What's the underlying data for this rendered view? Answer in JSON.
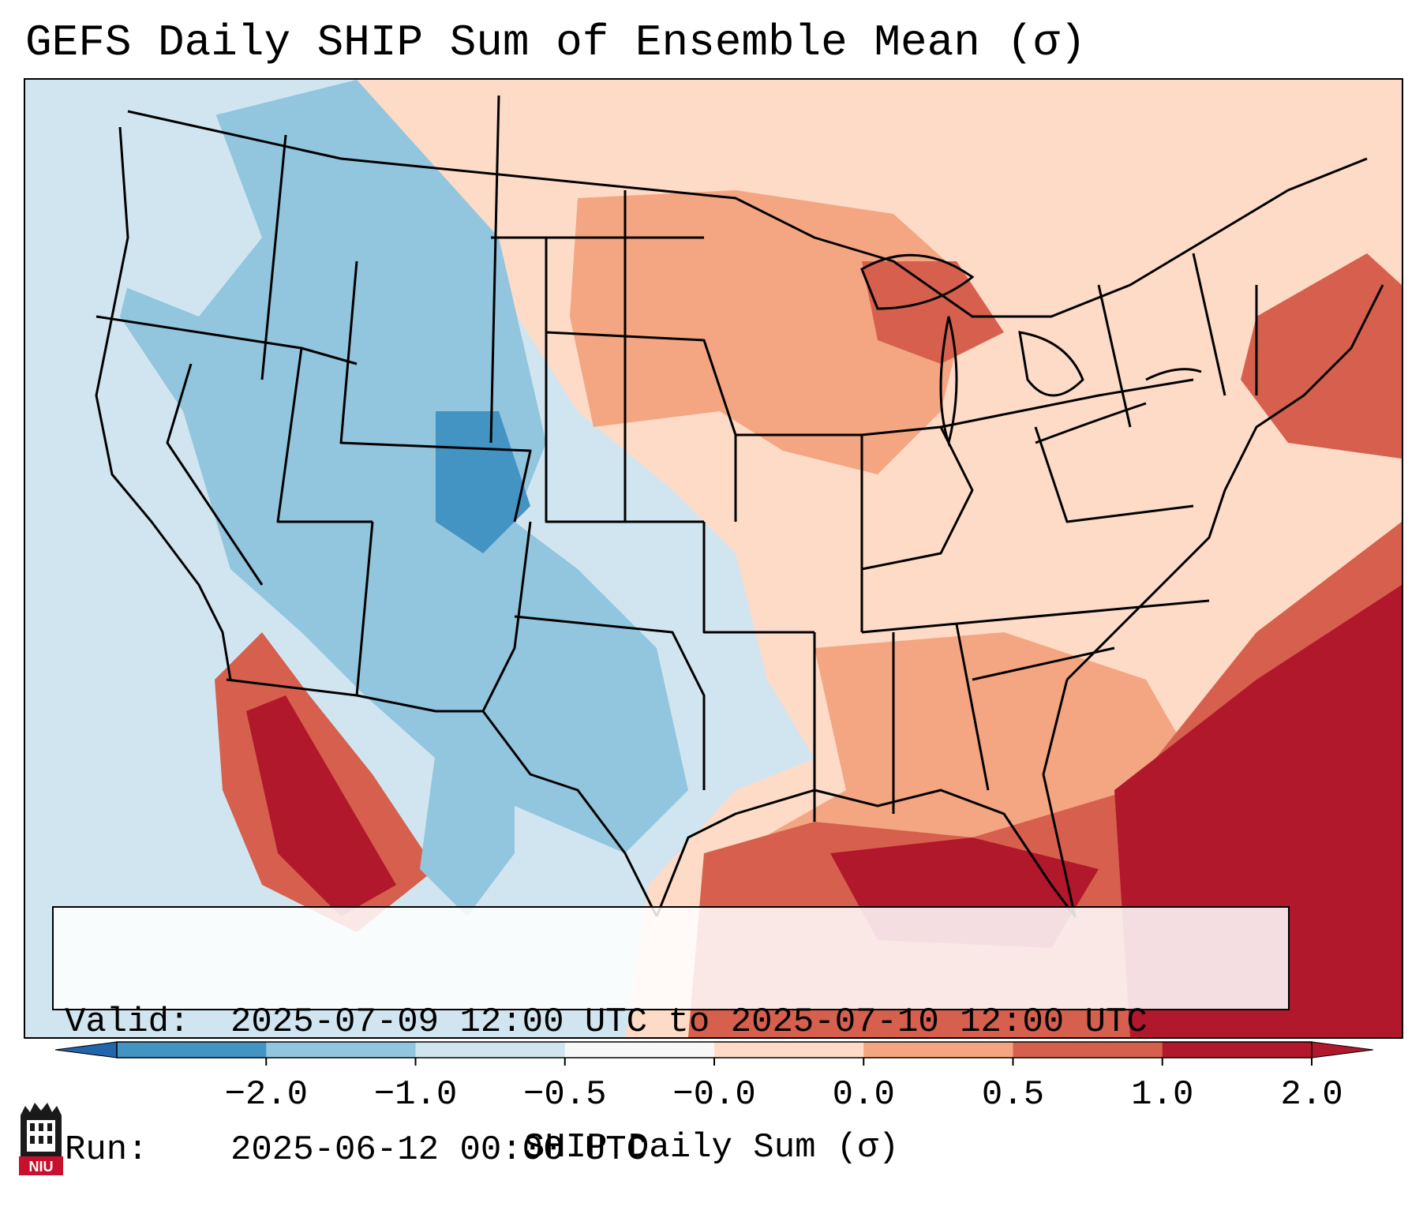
{
  "title": "GEFS Daily SHIP Sum of Ensemble Mean (σ)",
  "map": {
    "region": "Contiguous United States",
    "field": "SHIP daily sum anomaly",
    "colors": {
      "ocean": "#d1e5f0",
      "land_base": "#fddbc7",
      "borders": "#000000"
    }
  },
  "info": {
    "valid_label": "Valid:",
    "valid_value": "2025-07-09 12:00 UTC to 2025-07-10 12:00 UTC",
    "run_label": "Run:",
    "run_value": "2025-06-12 00:00 UTC"
  },
  "colorbar": {
    "label": "SHIP Daily Sum (σ)",
    "ticks": [
      "−2.0",
      "−1.0",
      "−0.5",
      "−0.0",
      "0.0",
      "0.5",
      "1.0",
      "2.0"
    ],
    "colors": [
      "#4393c3",
      "#92c5de",
      "#d1e5f0",
      "#f7f7f7",
      "#fddbc7",
      "#f4a582",
      "#d6604d",
      "#b2182b"
    ],
    "extend_low_color": "#2166ac",
    "extend_high_color": "#b2182b"
  },
  "logo": {
    "text": "NIU",
    "icon": "university-seal-icon",
    "color": "#c8102e"
  }
}
